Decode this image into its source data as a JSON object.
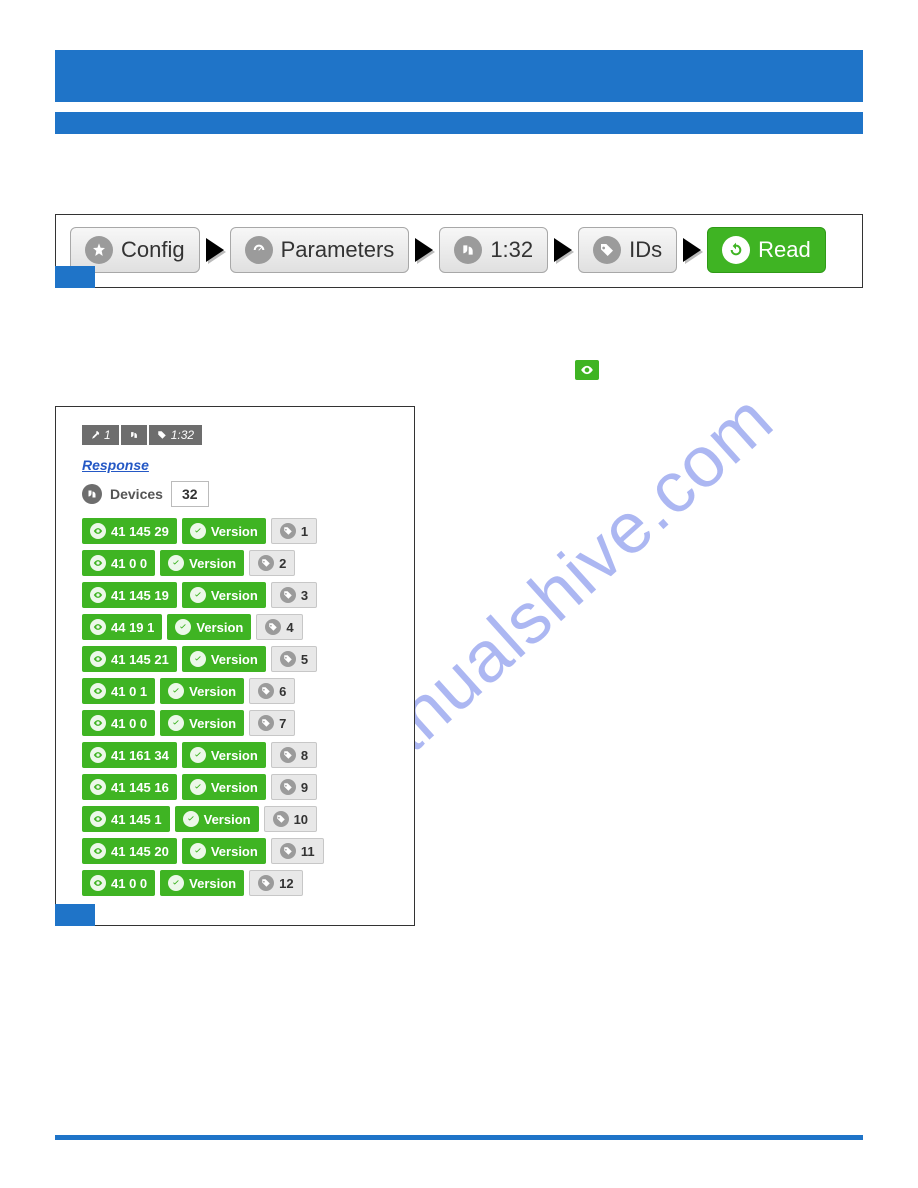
{
  "colors": {
    "primary_blue": "#1f74c8",
    "green": "#3fb423",
    "grey_chip": "#e8e8e8",
    "grey_icon": "#9b9b9b",
    "tag_grey": "#6d6d6d",
    "link_blue": "#2458c5"
  },
  "breadcrumb": {
    "items": [
      {
        "label": "Config",
        "icon": "star"
      },
      {
        "label": "Parameters",
        "icon": "gauge"
      },
      {
        "label": "1:32",
        "icon": "device"
      },
      {
        "label": "IDs",
        "icon": "tag"
      }
    ],
    "action": {
      "label": "Read",
      "icon": "refresh"
    }
  },
  "eye_inline": "👁",
  "response": {
    "top_tags": [
      {
        "icon": "wrench",
        "label": "1"
      },
      {
        "icon": "device",
        "label": ""
      },
      {
        "icon": "tag",
        "label": "1:32"
      }
    ],
    "title": "Response",
    "devices_label": "Devices",
    "devices_count": "32",
    "rows": [
      {
        "id": "41 145 29",
        "ver": "Version",
        "num": "1"
      },
      {
        "id": "41 0 0",
        "ver": "Version",
        "num": "2"
      },
      {
        "id": "41 145 19",
        "ver": "Version",
        "num": "3"
      },
      {
        "id": "44 19 1",
        "ver": "Version",
        "num": "4"
      },
      {
        "id": "41 145 21",
        "ver": "Version",
        "num": "5"
      },
      {
        "id": "41 0 1",
        "ver": "Version",
        "num": "6"
      },
      {
        "id": "41 0 0",
        "ver": "Version",
        "num": "7"
      },
      {
        "id": "41 161 34",
        "ver": "Version",
        "num": "8"
      },
      {
        "id": "41 145 16",
        "ver": "Version",
        "num": "9"
      },
      {
        "id": "41 145 1",
        "ver": "Version",
        "num": "10"
      },
      {
        "id": "41 145 20",
        "ver": "Version",
        "num": "11"
      },
      {
        "id": "41 0 0",
        "ver": "Version",
        "num": "12"
      }
    ]
  },
  "watermark": "manualshive.com"
}
